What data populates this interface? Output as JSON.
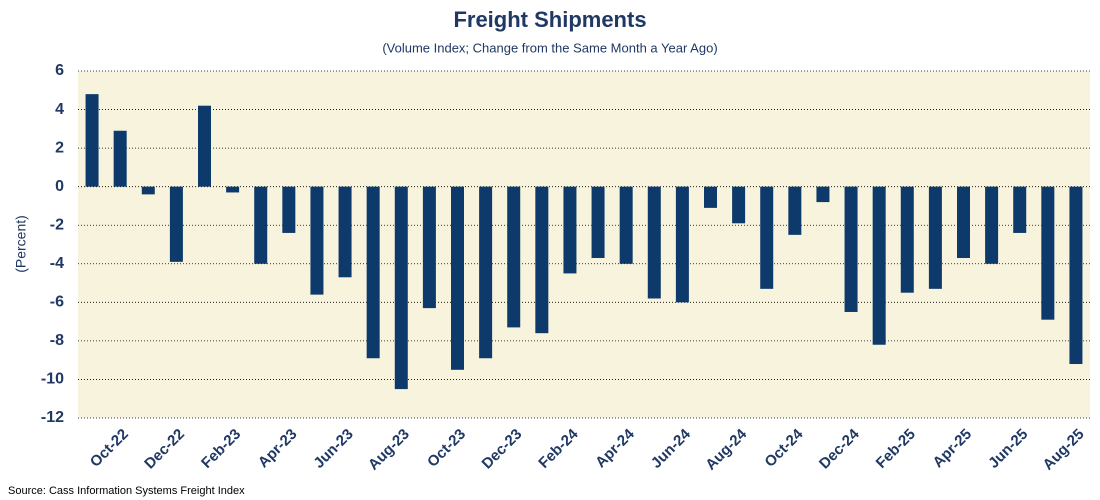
{
  "chart_data": {
    "type": "bar",
    "title": "Freight Shipments",
    "subtitle": "(Volume Index; Change from the Same Month a Year Ago)",
    "y_label": "(Percent)",
    "source": "Source: Cass Information Systems Freight Index",
    "categories": [
      null,
      "Oct-22",
      null,
      "Dec-22",
      null,
      "Feb-23",
      null,
      "Apr-23",
      null,
      "Jun-23",
      null,
      "Aug-23",
      null,
      "Oct-23",
      null,
      "Dec-23",
      null,
      "Feb-24",
      null,
      "Apr-24",
      null,
      "Jun-24",
      null,
      "Aug-24",
      null,
      "Oct-24",
      null,
      "Dec-24",
      null,
      "Feb-25",
      null,
      "Apr-25",
      null,
      "Jun-25",
      null,
      "Aug-25"
    ],
    "values": [
      4.8,
      2.9,
      -0.4,
      -3.9,
      4.2,
      -0.3,
      -4.0,
      -2.4,
      -5.6,
      -4.7,
      -8.9,
      -10.5,
      -6.3,
      -9.5,
      -8.9,
      -7.3,
      -7.6,
      -4.5,
      -3.7,
      -4.0,
      -5.8,
      -6.0,
      -1.1,
      -1.9,
      -5.3,
      -2.5,
      -0.8,
      -6.5,
      -8.2,
      -5.5,
      -5.3,
      -3.7,
      -4.0,
      -2.4,
      -6.9,
      -9.2
    ],
    "color": "#0d3a6b",
    "plot_background": "#f7f3dc",
    "ylim": [
      -12,
      6
    ],
    "yticks": [
      -12,
      -10,
      -8,
      -6,
      -4,
      -2,
      0,
      2,
      4,
      6
    ],
    "grid": true
  }
}
